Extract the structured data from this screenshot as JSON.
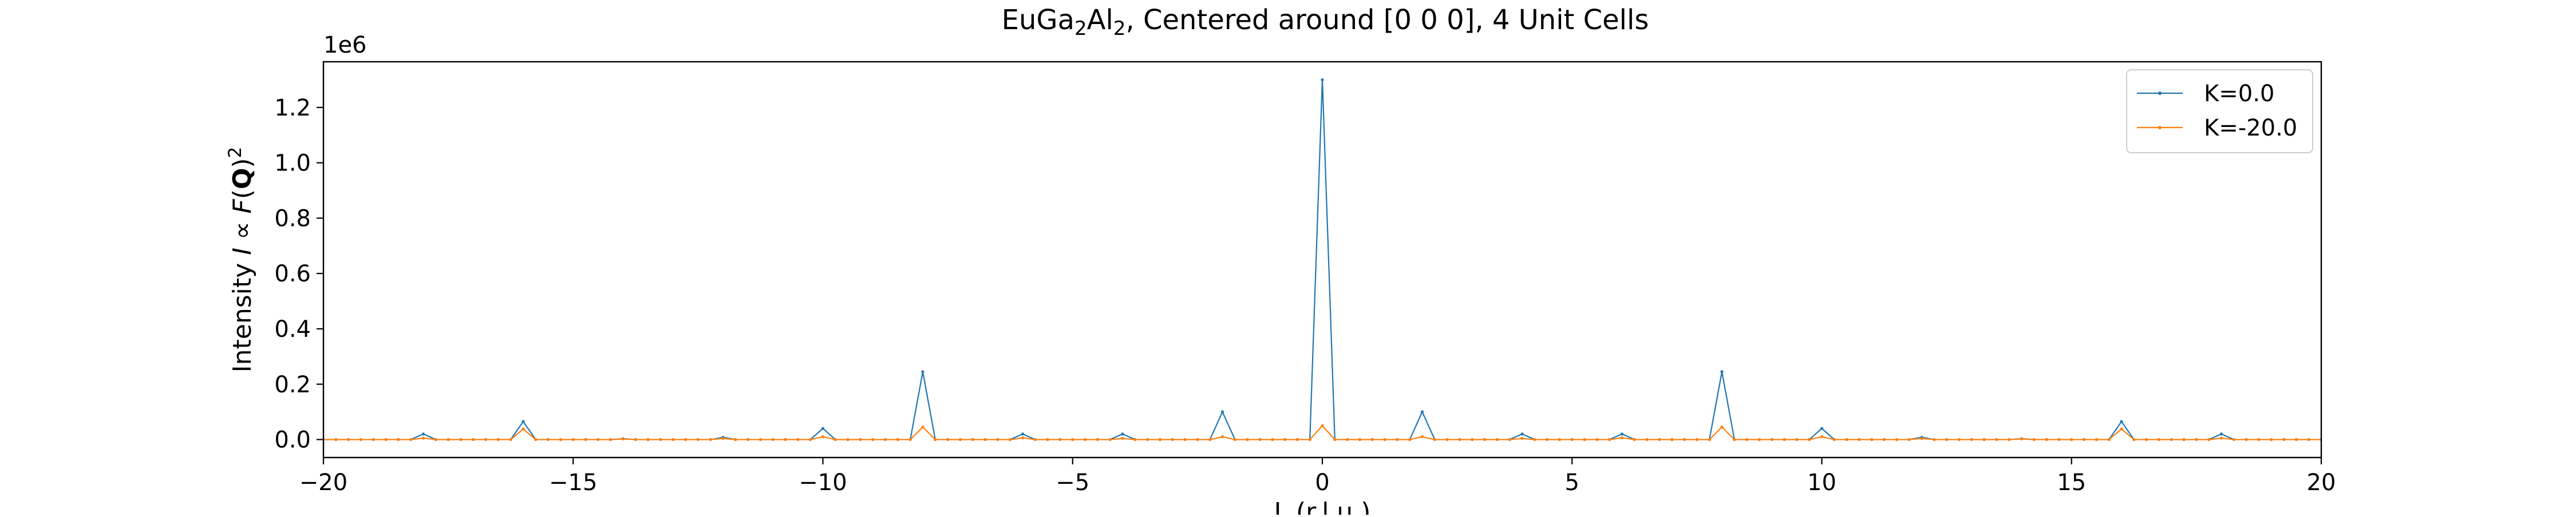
{
  "chart_data": {
    "type": "line",
    "title": {
      "prefix": "EuGa",
      "sub1": "2",
      "mid": "Al",
      "sub2": "2",
      "suffix": ", Centered around [0 0 0], 4 Unit Cells"
    },
    "xlabel": "L (r.l.u.)",
    "ylabel": {
      "main": "Intensity ",
      "italic": "I",
      "mid": " ∝ ",
      "italic2": "F",
      "open": "(",
      "bold": "Q",
      "close": ")",
      "sup": "2"
    },
    "y_offset_label": "1e6",
    "xlim": [
      -20,
      20
    ],
    "ylim": [
      -0.065,
      1.365
    ],
    "y_scale": 1000000,
    "xticks": [
      -20,
      -15,
      -10,
      -5,
      0,
      5,
      10,
      15,
      20
    ],
    "xtick_labels": [
      "−20",
      "−15",
      "−10",
      "−5",
      "0",
      "5",
      "10",
      "15",
      "20"
    ],
    "yticks": [
      0.0,
      0.2,
      0.4,
      0.6,
      0.8,
      1.0,
      1.2
    ],
    "ytick_labels": [
      "0.0",
      "0.2",
      "0.4",
      "0.6",
      "0.8",
      "1.0",
      "1.2"
    ],
    "x_sampling": {
      "start": -20,
      "stop": 20,
      "step": 0.25
    },
    "grid": false,
    "legend_position": "top-right",
    "series": [
      {
        "name": "K=0.0",
        "color": "#1f77b4",
        "peaks": [
          [
            -18,
            0.02
          ],
          [
            -16,
            0.065
          ],
          [
            -14,
            0.003
          ],
          [
            -12,
            0.008
          ],
          [
            -10,
            0.04
          ],
          [
            -8,
            0.245
          ],
          [
            -6,
            0.02
          ],
          [
            -4,
            0.02
          ],
          [
            -2,
            0.1
          ],
          [
            0,
            1.3
          ],
          [
            2,
            0.1
          ],
          [
            4,
            0.02
          ],
          [
            6,
            0.02
          ],
          [
            8,
            0.245
          ],
          [
            10,
            0.04
          ],
          [
            12,
            0.008
          ],
          [
            14,
            0.003
          ],
          [
            16,
            0.065
          ],
          [
            18,
            0.02
          ]
        ]
      },
      {
        "name": "K=-20.0",
        "color": "#ff7f0e",
        "peaks": [
          [
            -18,
            0.005
          ],
          [
            -16,
            0.038
          ],
          [
            -14,
            0.002
          ],
          [
            -12,
            0.004
          ],
          [
            -10,
            0.01
          ],
          [
            -8,
            0.045
          ],
          [
            -6,
            0.006
          ],
          [
            -4,
            0.004
          ],
          [
            -2,
            0.01
          ],
          [
            0,
            0.05
          ],
          [
            2,
            0.01
          ],
          [
            4,
            0.004
          ],
          [
            6,
            0.006
          ],
          [
            8,
            0.045
          ],
          [
            10,
            0.01
          ],
          [
            12,
            0.004
          ],
          [
            14,
            0.002
          ],
          [
            16,
            0.038
          ],
          [
            18,
            0.005
          ]
        ]
      }
    ]
  }
}
